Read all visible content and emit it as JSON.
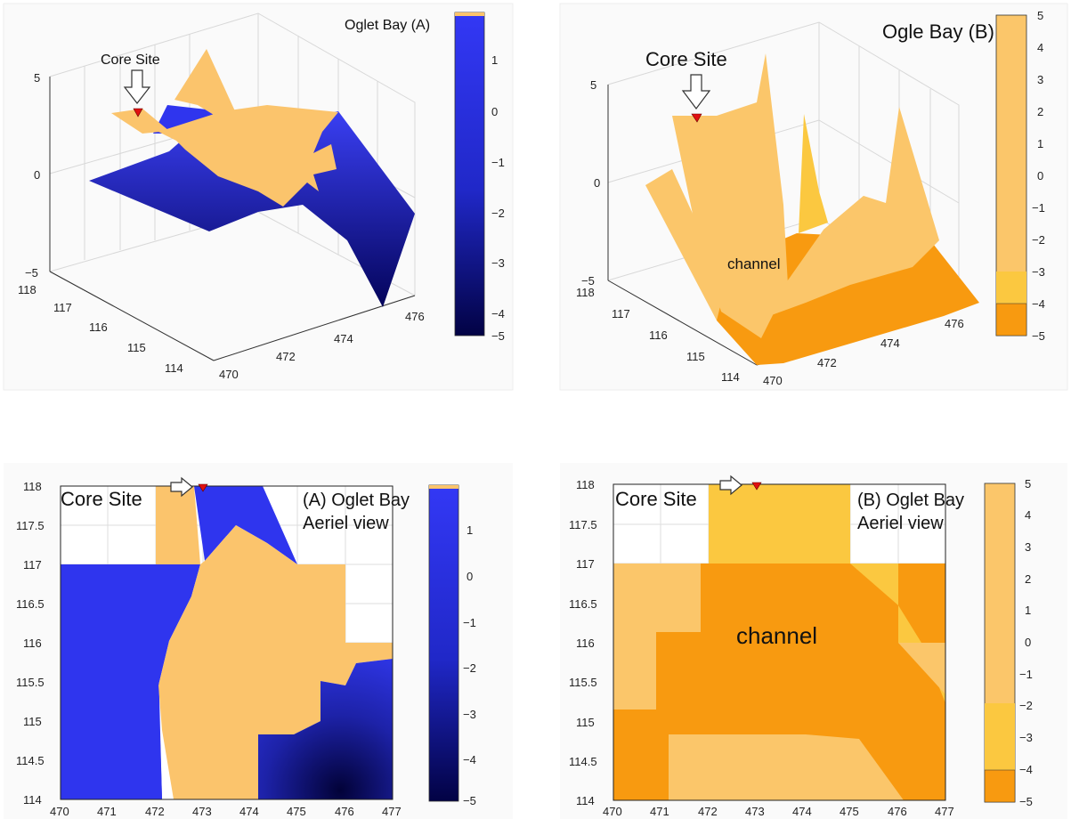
{
  "chart_data": [
    {
      "type": "surface3d",
      "title": "Oglet Bay (A)",
      "marker_label": "Core Site",
      "x_ticks": [
        "470",
        "472",
        "474",
        "476"
      ],
      "y_ticks": [
        "118",
        "117",
        "116",
        "115",
        "114"
      ],
      "z_ticks": [
        "5",
        "0",
        "−5"
      ],
      "colorbar_ticks": [
        "1",
        "0",
        "−1",
        "−2",
        "−3",
        "−4",
        "−5"
      ],
      "colorbar_range": [
        -5,
        1.9
      ],
      "colors": {
        "high": "#fbc46c",
        "surface": "#2f35ee",
        "low": "#020244"
      }
    },
    {
      "type": "surface3d",
      "title": "Ogle Bay (B)",
      "marker_label": "Core Site",
      "annotation": "channel",
      "x_ticks": [
        "470",
        "472",
        "474",
        "476"
      ],
      "y_ticks": [
        "118",
        "117",
        "116",
        "115",
        "114"
      ],
      "z_ticks": [
        "5",
        "0",
        "−5"
      ],
      "colorbar_ticks": [
        "5",
        "4",
        "3",
        "2",
        "1",
        "0",
        "−1",
        "−2",
        "−3",
        "−4",
        "−5"
      ],
      "colorbar_range": [
        -5,
        5
      ],
      "colors": {
        "high": "#fbc66a",
        "mid": "#fbc840",
        "low": "#f89a10"
      }
    },
    {
      "type": "heatmap",
      "title": "(A) Oglet Bay\nAeriel view",
      "title_lines": [
        "(A) Oglet Bay",
        "Aeriel view"
      ],
      "marker_label": "Core Site",
      "x_ticks": [
        "470",
        "471",
        "472",
        "473",
        "474",
        "475",
        "476",
        "477"
      ],
      "y_ticks": [
        "118",
        "117.5",
        "117",
        "116.5",
        "116",
        "115.5",
        "115",
        "114.5",
        "114"
      ],
      "colorbar_ticks": [
        "1",
        "0",
        "−1",
        "−2",
        "−3",
        "−4",
        "−5"
      ],
      "colorbar_range": [
        -5,
        1.9
      ],
      "xlim": [
        470,
        477
      ],
      "ylim": [
        114,
        118
      ]
    },
    {
      "type": "heatmap",
      "title": "(B) Oglet Bay\nAeriel view",
      "title_lines": [
        "(B) Oglet Bay",
        "Aeriel view"
      ],
      "marker_label": "Core Site",
      "annotation": "channel",
      "x_ticks": [
        "470",
        "471",
        "472",
        "473",
        "474",
        "475",
        "476",
        "477"
      ],
      "y_ticks": [
        "118",
        "117.5",
        "117",
        "116.5",
        "116",
        "115.5",
        "115",
        "114.5",
        "114"
      ],
      "colorbar_ticks": [
        "5",
        "4",
        "3",
        "2",
        "1",
        "0",
        "−1",
        "−2",
        "−3",
        "−4",
        "−5"
      ],
      "colorbar_range": [
        -5,
        5
      ],
      "xlim": [
        470,
        477
      ],
      "ylim": [
        114,
        118
      ]
    }
  ]
}
